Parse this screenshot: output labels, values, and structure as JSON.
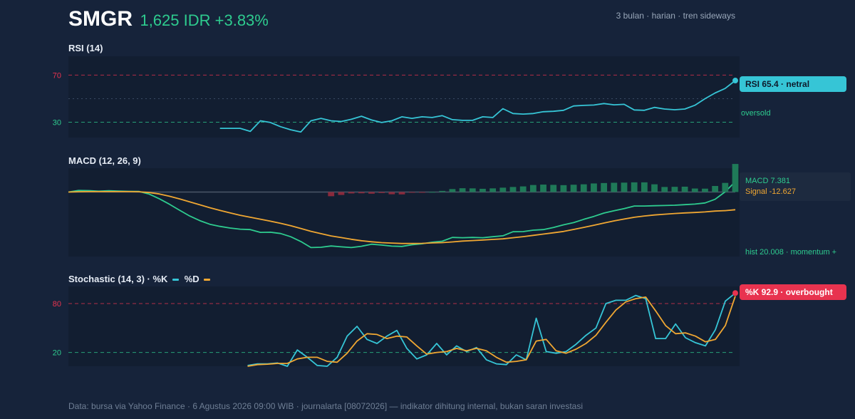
{
  "header": {
    "ticker": "SMGR",
    "price_text": "1,625 IDR +3.83%",
    "meta": "3 bulan · harian · tren sideways"
  },
  "panels": {
    "rsi_title": "RSI (14)",
    "macd_title": "MACD (12, 26, 9)",
    "stoch_title_prefix": "Stochastic (14, 3) · %K",
    "stoch_title_d": "%D"
  },
  "annotations": {
    "rsi_badge": "RSI 65.4 · netral",
    "rsi_oversold": "oversold",
    "macd_line": "MACD 7.381",
    "macd_signal": "Signal -12.627",
    "macd_hist": "hist 20.008 · momentum +",
    "stoch_badge": "%K 92.9 · overbought"
  },
  "footer": "Data: bursa via Yahoo Finance · 6 Agustus 2026 09:00 WIB · journalarta [08072026] — indikator dihitung internal, bukan saran investasi",
  "colors": {
    "background": "#16233a",
    "panel": "#121e31",
    "rsi_line": "#36c5d6",
    "macd_line": "#2ecc8f",
    "signal_line": "#f0a732",
    "hist_pos": "#1f7a58",
    "hist_neg": "#8a2a3c",
    "overbought": "#e8334f",
    "oversold": "#2ecc8f"
  },
  "chart_data": [
    {
      "type": "line",
      "title": "RSI (14)",
      "ylim": [
        17,
        86
      ],
      "reference_lines": [
        {
          "value": 70,
          "label": "70",
          "color": "#e8334f"
        },
        {
          "value": 30,
          "label": "30",
          "color": "#2ecc8f"
        },
        {
          "value": 50
        }
      ],
      "series": [
        {
          "values": [
            null,
            null,
            null,
            null,
            null,
            null,
            null,
            null,
            null,
            null,
            null,
            null,
            null,
            null,
            null,
            24.8,
            24.8,
            24.8,
            22.2,
            31.2,
            29.8,
            26.2,
            23.6,
            21.7,
            31.2,
            33.3,
            31.2,
            30.6,
            32.5,
            35.1,
            31.9,
            29.8,
            31.2,
            34.6,
            33.3,
            34.6,
            34.0,
            35.6,
            32.2,
            31.6,
            31.6,
            34.6,
            34.0,
            41.5,
            37.4,
            36.9,
            37.4,
            38.9,
            39.3,
            40.1,
            43.8,
            44.3,
            44.6,
            45.9,
            44.8,
            45.2,
            40.4,
            40.1,
            42.6,
            41.2,
            40.6,
            41.2,
            44.4,
            50.0,
            54.8,
            58.7,
            65.4
          ]
        }
      ]
    },
    {
      "type": "line",
      "title": "MACD (12, 26, 9)",
      "ylim": [
        -46,
        17
      ],
      "reference_lines": [
        {
          "value": 0
        }
      ],
      "series": [
        {
          "values": [
            0,
            1.1,
            1.0,
            0.6,
            0.9,
            0.7,
            0.5,
            0.4,
            -1.5,
            -4.8,
            -8.7,
            -13.0,
            -17.1,
            -20.4,
            -23.0,
            -24.5,
            -25.7,
            -26.5,
            -26.8,
            -28.8,
            -28.7,
            -29.6,
            -31.9,
            -35.3,
            -39.6,
            -39.4,
            -38.5,
            -39.1,
            -39.6,
            -38.7,
            -37.2,
            -37.8,
            -38.6,
            -38.8,
            -37.6,
            -36.9,
            -35.8,
            -35.1,
            -32.4,
            -32.6,
            -32.4,
            -32.6,
            -31.9,
            -31.2,
            -28.3,
            -28.2,
            -27.2,
            -26.8,
            -25.3,
            -23.4,
            -21.8,
            -19.5,
            -17.4,
            -15.0,
            -13.4,
            -11.8,
            -10.0,
            -10.0,
            -9.8,
            -9.6,
            -9.4,
            -9.0,
            -8.6,
            -7.8,
            -5.2,
            0.2,
            7.381
          ]
        },
        {
          "values": [
            0,
            0.2,
            0.3,
            0.3,
            0.3,
            0.3,
            0.3,
            0.2,
            -0.4,
            -1.4,
            -3.0,
            -4.9,
            -7.0,
            -9.1,
            -11.2,
            -13.1,
            -14.9,
            -16.6,
            -18.0,
            -19.4,
            -20.8,
            -22.3,
            -24.0,
            -26.0,
            -28.0,
            -29.7,
            -31.3,
            -32.5,
            -33.7,
            -34.7,
            -35.5,
            -36.1,
            -36.4,
            -36.7,
            -36.7,
            -36.6,
            -36.3,
            -36.1,
            -35.6,
            -35.0,
            -34.6,
            -34.2,
            -33.8,
            -33.4,
            -32.6,
            -31.8,
            -30.9,
            -30.0,
            -29.1,
            -28.1,
            -26.7,
            -25.2,
            -23.7,
            -22.1,
            -20.6,
            -19.3,
            -18.0,
            -17.1,
            -16.4,
            -15.8,
            -15.3,
            -14.9,
            -14.6,
            -14.2,
            -13.6,
            -13.3,
            -12.627
          ]
        },
        {
          "name": "hist",
          "type": "bar",
          "values": [
            null,
            null,
            null,
            null,
            null,
            null,
            null,
            null,
            null,
            null,
            null,
            null,
            null,
            null,
            null,
            null,
            null,
            null,
            null,
            null,
            null,
            null,
            null,
            null,
            null,
            null,
            -3.0,
            -2.1,
            -1.0,
            -0.9,
            -1.2,
            -0.7,
            -1.6,
            -1.7,
            -0.5,
            -0.4,
            0.1,
            0.8,
            2.1,
            2.7,
            2.6,
            2.3,
            2.6,
            3.1,
            3.6,
            4.0,
            5.0,
            5.3,
            5.1,
            4.9,
            5.2,
            5.5,
            6.1,
            6.4,
            6.6,
            6.7,
            6.9,
            6.9,
            5.5,
            3.6,
            3.7,
            3.8,
            2.5,
            2.4,
            4.3,
            6.5,
            20.008
          ]
        }
      ]
    },
    {
      "type": "line",
      "title": "Stochastic (14, 3)",
      "ylim": [
        3,
        101
      ],
      "reference_lines": [
        {
          "value": 80,
          "label": "80",
          "color": "#e8334f"
        },
        {
          "value": 20,
          "label": "20",
          "color": "#2ecc8f"
        }
      ],
      "series": [
        {
          "name": "%K",
          "values": [
            null,
            null,
            null,
            null,
            null,
            null,
            null,
            null,
            null,
            null,
            null,
            null,
            null,
            null,
            null,
            null,
            null,
            null,
            4.0,
            6.0,
            6.0,
            7.0,
            3.0,
            23.0,
            14.0,
            4.0,
            3.0,
            14.0,
            40.0,
            52.0,
            36.0,
            31.0,
            40.0,
            47.0,
            25.0,
            12.0,
            17.0,
            31.0,
            17.0,
            28.0,
            21.0,
            26.0,
            11.0,
            6.0,
            5.0,
            17.0,
            11.0,
            62.0,
            21.0,
            19.0,
            21.0,
            30.0,
            41.0,
            50.0,
            80.0,
            84.0,
            84.0,
            90.0,
            86.0,
            37.0,
            37.0,
            55.0,
            38.0,
            32.0,
            28.0,
            48.0,
            83.0,
            92.9
          ]
        },
        {
          "name": "%D",
          "values": [
            null,
            null,
            null,
            null,
            null,
            null,
            null,
            null,
            null,
            null,
            null,
            null,
            null,
            null,
            null,
            null,
            null,
            null,
            3.0,
            5.0,
            5.5,
            6.5,
            6.5,
            12.0,
            14.0,
            14.0,
            9.0,
            8.0,
            19.0,
            34.0,
            43.0,
            42.0,
            37.0,
            40.0,
            39.0,
            28.0,
            18.0,
            20.0,
            21.0,
            25.0,
            22.0,
            25.0,
            22.0,
            14.0,
            8.0,
            9.0,
            11.0,
            34.0,
            36.0,
            22.0,
            19.0,
            24.0,
            31.0,
            41.0,
            57.0,
            72.0,
            82.0,
            86.0,
            88.0,
            71.0,
            53.0,
            43.0,
            44.0,
            40.0,
            33.0,
            36.0,
            53.0,
            89.0
          ]
        }
      ]
    }
  ]
}
